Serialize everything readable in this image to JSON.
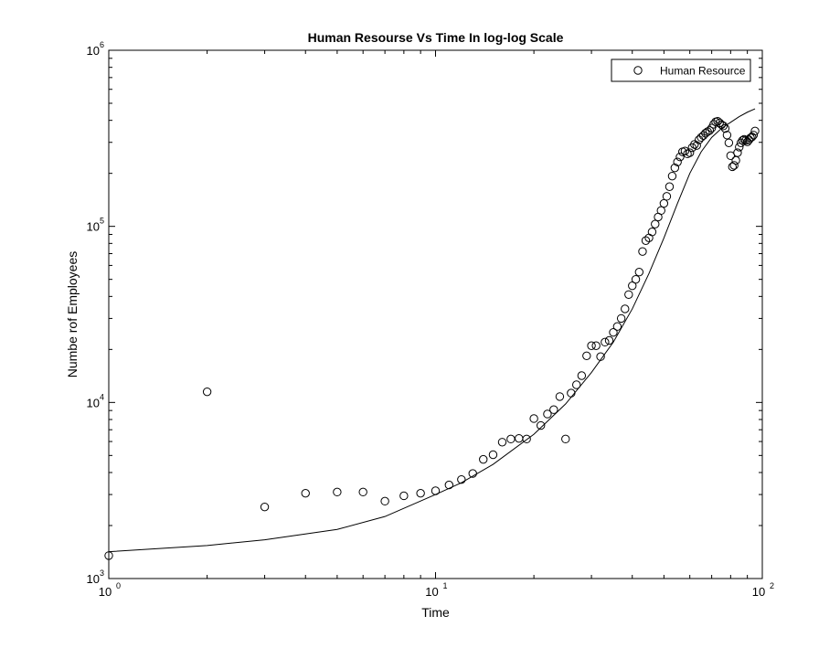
{
  "chart_data": {
    "type": "scatter",
    "title": "Human Resourse Vs Time In log-log Scale",
    "xlabel": "Time",
    "ylabel": "Numbe rof Employees",
    "xscale": "log",
    "yscale": "log",
    "xlim": [
      1,
      100
    ],
    "ylim": [
      1000,
      1000000
    ],
    "x_ticks": [
      {
        "base": "10",
        "exp": "0",
        "value": 1
      },
      {
        "base": "10",
        "exp": "1",
        "value": 10
      },
      {
        "base": "10",
        "exp": "2",
        "value": 100
      }
    ],
    "y_ticks": [
      {
        "base": "10",
        "exp": "3",
        "value": 1000
      },
      {
        "base": "10",
        "exp": "4",
        "value": 10000
      },
      {
        "base": "10",
        "exp": "5",
        "value": 100000
      },
      {
        "base": "10",
        "exp": "6",
        "value": 1000000
      }
    ],
    "grid": false,
    "legend_position": "top-right",
    "series": [
      {
        "name": "Human Resource",
        "marker": "circle",
        "color": "#000000",
        "points": [
          [
            1,
            1350
          ],
          [
            2,
            11500
          ],
          [
            3,
            2550
          ],
          [
            4,
            3050
          ],
          [
            5,
            3100
          ],
          [
            6,
            3100
          ],
          [
            7,
            2750
          ],
          [
            8,
            2950
          ],
          [
            9,
            3050
          ],
          [
            10,
            3150
          ],
          [
            11,
            3400
          ],
          [
            12,
            3650
          ],
          [
            13,
            3950
          ],
          [
            14,
            4750
          ],
          [
            15,
            5050
          ],
          [
            16,
            5950
          ],
          [
            17,
            6200
          ],
          [
            18,
            6250
          ],
          [
            19,
            6200
          ],
          [
            20,
            8100
          ],
          [
            21,
            7400
          ],
          [
            22,
            8600
          ],
          [
            23,
            9100
          ],
          [
            24,
            10800
          ],
          [
            25,
            6200
          ],
          [
            26,
            11300
          ],
          [
            27,
            12600
          ],
          [
            28,
            14200
          ],
          [
            29,
            18400
          ],
          [
            30,
            21000
          ],
          [
            31,
            21000
          ],
          [
            32,
            18200
          ],
          [
            33,
            22000
          ],
          [
            34,
            22500
          ],
          [
            35,
            25000
          ],
          [
            36,
            27000
          ],
          [
            37,
            30000
          ],
          [
            38,
            34000
          ],
          [
            39,
            41000
          ],
          [
            40,
            46000
          ],
          [
            41,
            50000
          ],
          [
            42,
            55000
          ],
          [
            43,
            72000
          ],
          [
            44,
            83000
          ],
          [
            45,
            86000
          ],
          [
            46,
            93000
          ],
          [
            47,
            103000
          ],
          [
            48,
            113000
          ],
          [
            49,
            123000
          ],
          [
            50,
            135000
          ],
          [
            51,
            148000
          ],
          [
            52,
            168000
          ],
          [
            53,
            193000
          ],
          [
            54,
            215000
          ],
          [
            55,
            232000
          ],
          [
            56,
            248000
          ],
          [
            57,
            265000
          ],
          [
            58,
            268000
          ],
          [
            59,
            258000
          ],
          [
            60,
            262000
          ],
          [
            61,
            280000
          ],
          [
            62,
            292000
          ],
          [
            63,
            288000
          ],
          [
            64,
            310000
          ],
          [
            65,
            320000
          ],
          [
            66,
            328000
          ],
          [
            67,
            338000
          ],
          [
            68,
            345000
          ],
          [
            69,
            350000
          ],
          [
            70,
            362000
          ],
          [
            71,
            380000
          ],
          [
            72,
            392000
          ],
          [
            73,
            395000
          ],
          [
            74,
            387000
          ],
          [
            75,
            378000
          ],
          [
            76,
            372000
          ],
          [
            77,
            360000
          ],
          [
            78,
            330000
          ],
          [
            79,
            298000
          ],
          [
            80,
            252000
          ],
          [
            81,
            218000
          ],
          [
            82,
            222000
          ],
          [
            83,
            237000
          ],
          [
            84,
            262000
          ],
          [
            85,
            282000
          ],
          [
            86,
            298000
          ],
          [
            87,
            308000
          ],
          [
            88,
            312000
          ],
          [
            89,
            308000
          ],
          [
            90,
            302000
          ],
          [
            91,
            310000
          ],
          [
            92,
            318000
          ],
          [
            93,
            322000
          ],
          [
            94,
            330000
          ],
          [
            95,
            348000
          ]
        ]
      },
      {
        "name": "",
        "type": "line",
        "color": "#000000",
        "points": [
          [
            1,
            1420
          ],
          [
            2,
            1540
          ],
          [
            3,
            1660
          ],
          [
            5,
            1900
          ],
          [
            7,
            2250
          ],
          [
            10,
            3000
          ],
          [
            12,
            3500
          ],
          [
            15,
            4450
          ],
          [
            20,
            6600
          ],
          [
            25,
            9800
          ],
          [
            30,
            14800
          ],
          [
            35,
            22000
          ],
          [
            40,
            34000
          ],
          [
            45,
            54000
          ],
          [
            50,
            86000
          ],
          [
            55,
            135000
          ],
          [
            60,
            200000
          ],
          [
            65,
            265000
          ],
          [
            70,
            320000
          ],
          [
            75,
            360000
          ],
          [
            80,
            390000
          ],
          [
            85,
            420000
          ],
          [
            90,
            445000
          ],
          [
            95,
            465000
          ]
        ]
      }
    ]
  }
}
